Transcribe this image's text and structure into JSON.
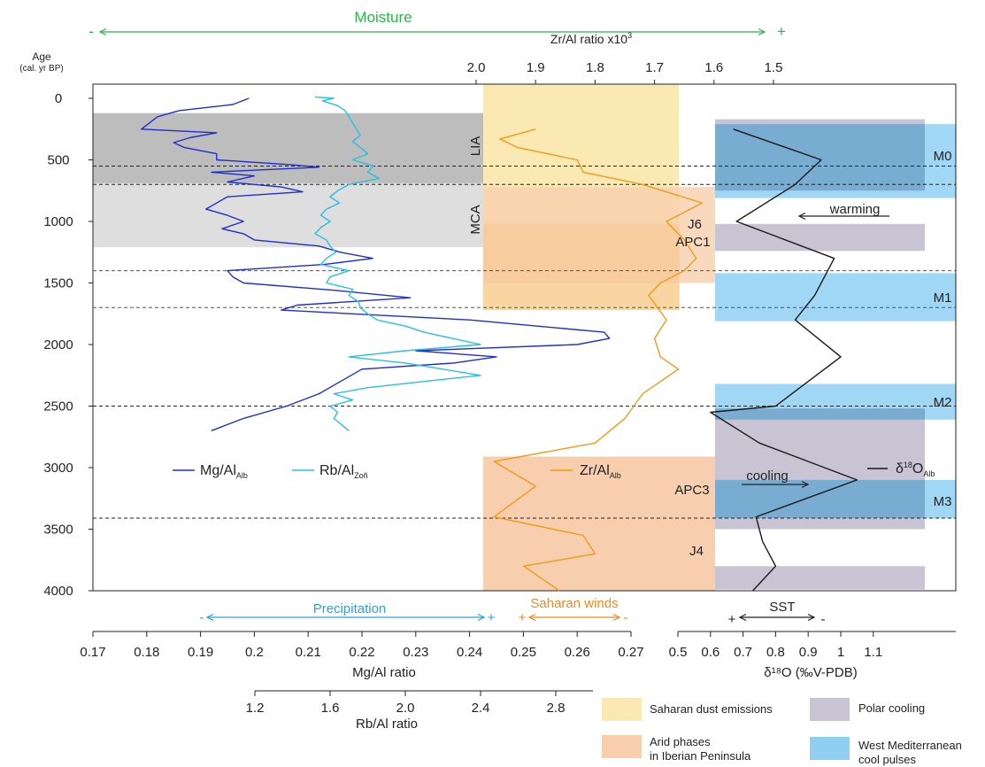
{
  "chart_data": {
    "type": "line",
    "moisture": {
      "label": "Moisture",
      "minus": "-",
      "plus": "+",
      "color": "#2db34a"
    },
    "age_axis": {
      "label": "Age",
      "sublabel": "(cal. yr BP)",
      "range": [
        0,
        4000
      ],
      "ticks": [
        "0",
        "500",
        "1000",
        "1500",
        "2000",
        "2500",
        "3000",
        "3500",
        "4000"
      ]
    },
    "zr_axis": {
      "label": "Zr/Al ratio x10",
      "label_sup": "3",
      "range": [
        2.0,
        1.5
      ],
      "ticks": [
        "2.0",
        "1.9",
        "1.8",
        "1.7",
        "1.6",
        "1.5"
      ]
    },
    "mg_axis": {
      "label": "Mg/Al ratio",
      "range": [
        0.17,
        0.27
      ],
      "ticks": [
        "0.17",
        "0.18",
        "0.19",
        "0.2",
        "0.21",
        "0.22",
        "0.23",
        "0.24",
        "0.25",
        "0.26",
        "0.27"
      ]
    },
    "rb_axis": {
      "label": "Rb/Al ratio",
      "range": [
        1.2,
        2.8
      ],
      "ticks": [
        "1.2",
        "1.6",
        "2.0",
        "2.4",
        "2.8"
      ]
    },
    "d18o_axis": {
      "label": "δ¹⁸O (‰V-PDB)",
      "range": [
        0.5,
        1.1
      ],
      "ticks": [
        "0.5",
        "0.6",
        "0.7",
        "0.8",
        "0.9",
        "1",
        "1.1"
      ]
    },
    "arrows": {
      "precipitation": {
        "label": "Precipitation",
        "left": "-",
        "right": "+"
      },
      "saharan_winds": {
        "label": "Saharan winds",
        "left": "+",
        "right": "-"
      },
      "sst": {
        "label": "SST",
        "left": "+",
        "right": "-"
      }
    },
    "period_labels": {
      "lia": "LIA",
      "mca": "MCA"
    },
    "event_labels": {
      "j6": "J6",
      "apc1": "APC1",
      "apc3": "APC3",
      "j4": "J4",
      "m0": "M0",
      "m1": "M1",
      "m2": "M2",
      "m3": "M3",
      "warming": "warming",
      "cooling": "cooling"
    },
    "series": [
      {
        "name": "Mg/Al",
        "sub": "Alb",
        "color": "#1f2fcf",
        "axis": "mg",
        "age": [
          0,
          50,
          100,
          150,
          250,
          280,
          320,
          360,
          400,
          450,
          500,
          540,
          560,
          600,
          630,
          680,
          720,
          760,
          800,
          850,
          900,
          950,
          1000,
          1060,
          1100,
          1150,
          1200,
          1250,
          1300,
          1350,
          1400,
          1450,
          1500,
          1560,
          1620,
          1680,
          1720,
          1800,
          1900,
          1950,
          2000,
          2050,
          2100,
          2150,
          2200,
          2300,
          2400,
          2500,
          2600,
          2700
        ],
        "value": [
          0.199,
          0.196,
          0.186,
          0.182,
          0.179,
          0.193,
          0.188,
          0.185,
          0.187,
          0.193,
          0.193,
          0.207,
          0.212,
          0.192,
          0.2,
          0.195,
          0.205,
          0.209,
          0.195,
          0.193,
          0.191,
          0.195,
          0.198,
          0.194,
          0.198,
          0.2,
          0.212,
          0.216,
          0.222,
          0.213,
          0.195,
          0.196,
          0.198,
          0.215,
          0.229,
          0.208,
          0.205,
          0.24,
          0.265,
          0.266,
          0.26,
          0.23,
          0.245,
          0.237,
          0.22,
          0.216,
          0.212,
          0.206,
          0.198,
          0.192
        ]
      },
      {
        "name": "Rb/Al",
        "sub": "Zoñ",
        "color": "#29c0e0",
        "axis": "rb",
        "age": [
          -10,
          0,
          20,
          60,
          100,
          150,
          200,
          250,
          300,
          350,
          400,
          450,
          500,
          550,
          600,
          650,
          700,
          750,
          800,
          850,
          900,
          950,
          1000,
          1050,
          1100,
          1150,
          1200,
          1250,
          1300,
          1350,
          1400,
          1450,
          1500,
          1550,
          1600,
          1650,
          1700,
          1750,
          1800,
          1850,
          1900,
          1950,
          2000,
          2050,
          2100,
          2150,
          2200,
          2250,
          2300,
          2350,
          2400,
          2450,
          2500,
          2550,
          2600,
          2650,
          2700
        ],
        "value": [
          1.52,
          1.62,
          1.56,
          1.64,
          1.68,
          1.7,
          1.72,
          1.74,
          1.76,
          1.72,
          1.76,
          1.8,
          1.72,
          1.83,
          1.8,
          1.86,
          1.7,
          1.64,
          1.6,
          1.65,
          1.58,
          1.55,
          1.6,
          1.55,
          1.52,
          1.58,
          1.6,
          1.63,
          1.58,
          1.55,
          1.7,
          1.6,
          1.58,
          1.72,
          1.7,
          1.75,
          1.76,
          1.8,
          1.85,
          2.0,
          2.1,
          2.25,
          2.4,
          2.0,
          1.7,
          2.0,
          2.2,
          2.4,
          2.1,
          1.8,
          1.62,
          1.72,
          1.6,
          1.64,
          1.62,
          1.66,
          1.7
        ]
      },
      {
        "name": "Zr/Al",
        "sub": "Alb",
        "color": "#f39a1a",
        "axis": "zr",
        "age": [
          250,
          330,
          400,
          500,
          600,
          700,
          850,
          1000,
          1150,
          1300,
          1400,
          1500,
          1600,
          1800,
          1950,
          2100,
          2200,
          2300,
          2400,
          2600,
          2800,
          2950,
          3150,
          3400,
          3550,
          3700,
          3800,
          4000
        ],
        "value": [
          1.9,
          1.96,
          1.93,
          1.83,
          1.82,
          1.72,
          1.62,
          1.68,
          1.65,
          1.63,
          1.65,
          1.69,
          1.71,
          1.68,
          1.7,
          1.69,
          1.66,
          1.69,
          1.72,
          1.75,
          1.8,
          1.97,
          1.9,
          1.97,
          1.82,
          1.8,
          1.92,
          1.86
        ]
      },
      {
        "name": "δ18O",
        "sub": "Alb",
        "color": "#1a1a1a",
        "axis": "d18o",
        "age": [
          250,
          500,
          700,
          1000,
          1100,
          1300,
          1600,
          1800,
          2100,
          2400,
          2500,
          2550,
          2800,
          3000,
          3100,
          3400,
          3600,
          3800,
          4000
        ],
        "value": [
          0.67,
          0.94,
          0.86,
          0.68,
          0.78,
          0.98,
          0.92,
          0.86,
          1.0,
          0.85,
          0.8,
          0.6,
          0.75,
          0.95,
          1.05,
          0.74,
          0.76,
          0.8,
          0.73
        ]
      }
    ],
    "legend": {
      "dust": "Saharan dust emissions",
      "arid": "Arid phases in Iberian Peninsula",
      "polar": "Polar cooling",
      "wmed": "West Mediterranean cool pulses"
    },
    "colors": {
      "dust": "#fbe9b4",
      "arid": "#f8cfae",
      "polar": "#c9c4d4",
      "wmed": "#8fd0f2",
      "lia": "#bdbdbd",
      "mca": "#dedede",
      "precip": "#29a3d8",
      "winds": "#ef8a1f"
    }
  }
}
